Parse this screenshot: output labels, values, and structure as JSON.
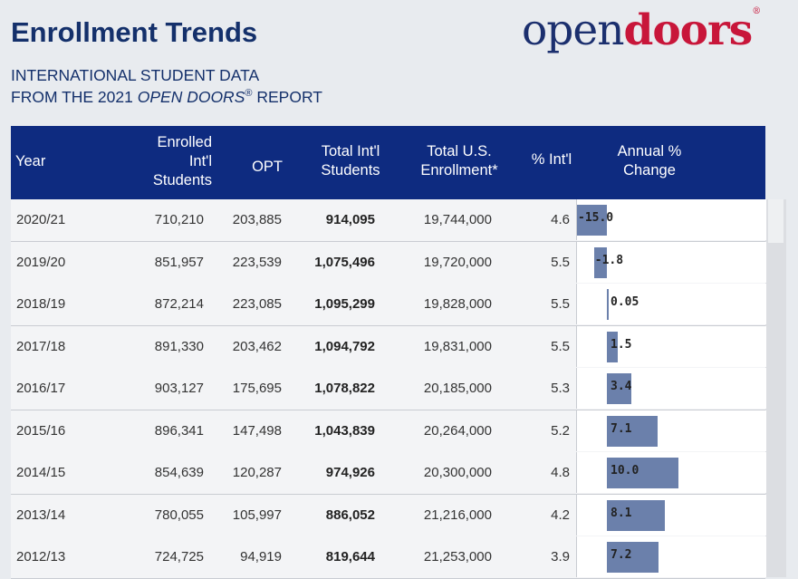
{
  "header": {
    "title": "Enrollment Trends",
    "subtitle_line1": "INTERNATIONAL STUDENT DATA",
    "subtitle_line2": [
      "FROM THE 2021",
      "OPEN DOORS",
      "®",
      "REPORT"
    ],
    "logo": {
      "part1": "open",
      "part2": "doors",
      "mark": "®"
    }
  },
  "table": {
    "columns": [
      "Year",
      "Enrolled Int'l Students",
      "OPT",
      "Total Int'l Students",
      "Total U.S. Enrollment*",
      "% Int'l",
      "Annual % Change"
    ],
    "rows": [
      [
        "2020/21",
        "710,210",
        "203,885",
        "914,095",
        "19,744,000",
        "4.6"
      ],
      [
        "2019/20",
        "851,957",
        "223,539",
        "1,075,496",
        "19,720,000",
        "5.5"
      ],
      [
        "2018/19",
        "872,214",
        "223,085",
        "1,095,299",
        "19,828,000",
        "5.5"
      ],
      [
        "2017/18",
        "891,330",
        "203,462",
        "1,094,792",
        "19,831,000",
        "5.5"
      ],
      [
        "2016/17",
        "903,127",
        "175,695",
        "1,078,822",
        "20,185,000",
        "5.3"
      ],
      [
        "2015/16",
        "896,341",
        "147,498",
        "1,043,839",
        "20,264,000",
        "5.2"
      ],
      [
        "2014/15",
        "854,639",
        "120,287",
        "974,926",
        "20,300,000",
        "4.8"
      ],
      [
        "2013/14",
        "780,055",
        "105,997",
        "886,052",
        "21,216,000",
        "4.2"
      ],
      [
        "2012/13",
        "724,725",
        "94,919",
        "819,644",
        "21,253,000",
        "3.9"
      ]
    ],
    "annual_change": {
      "values": [
        -15,
        -1.8,
        0.05,
        1.5,
        3.4,
        7.1,
        10,
        8.1,
        7.2
      ],
      "value_labels": [
        "-15.0",
        "-1.8",
        "0.05",
        "1.5",
        "3.4",
        "7.1",
        "10.0",
        "8.1",
        "7.2"
      ],
      "color": "#6b80ab"
    }
  }
}
